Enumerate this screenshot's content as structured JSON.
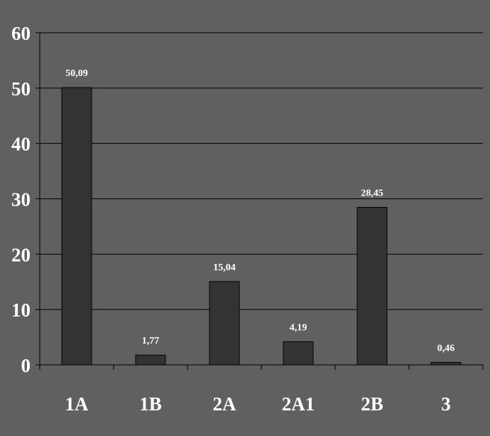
{
  "chart_data": {
    "type": "bar",
    "title": "",
    "xlabel": "",
    "ylabel": "",
    "categories": [
      "1A",
      "1B",
      "2A",
      "2A1",
      "2B",
      "3"
    ],
    "values": [
      50.09,
      1.77,
      15.04,
      4.19,
      28.45,
      0.46
    ],
    "data_labels": [
      "50,09",
      "1,77",
      "15,04",
      "4,19",
      "28,45",
      "0,46"
    ],
    "ylim": [
      0,
      60
    ],
    "yticks": [
      "0",
      "10",
      "20",
      "30",
      "40",
      "50",
      "60"
    ],
    "grid": true,
    "legend": "none",
    "colors": {
      "background": "#606060",
      "bar": "#333333",
      "bar_edge": "#000000",
      "gridline": "#000000",
      "text": "#ffffff"
    }
  }
}
